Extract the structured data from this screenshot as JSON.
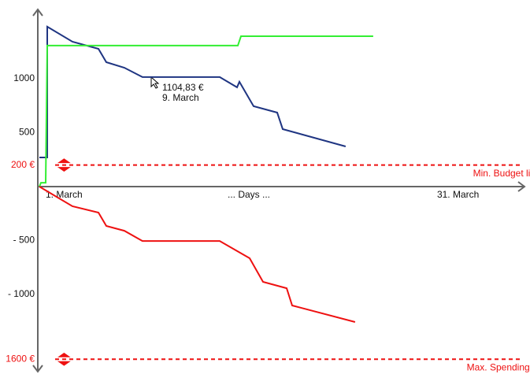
{
  "chart_data": {
    "type": "line",
    "xlabel": "... Days ...",
    "xlim": [
      -1,
      36
    ],
    "xticks": [
      {
        "value": 1,
        "label": "1. March"
      },
      {
        "value": 31,
        "label": "31. March"
      }
    ],
    "ylim": [
      -1700,
      1620
    ],
    "yticks": [
      1000,
      500,
      {
        "value": 200,
        "label": "200 €"
      },
      {
        "value": -500,
        "label": "- 500"
      },
      {
        "value": -1000,
        "label": "- 1000"
      },
      {
        "value": -1600,
        "label": "1600 €"
      }
    ],
    "series": [
      {
        "color": "#1f3582",
        "x": [
          -0.88,
          -0.28,
          -0.28,
          1.64,
          3.62,
          4.22,
          5.59,
          6.97,
          12.85,
          14.17,
          14.35,
          15.43,
          17.23,
          17.65,
          22.44
        ],
        "values": [
          270,
          270,
          1482,
          1343,
          1277,
          1153,
          1102,
          1015,
          1015,
          920,
          971,
          745,
          686,
          533,
          372
        ]
      },
      {
        "color": "#33ee33",
        "x": [
          -0.88,
          -0.76,
          -0.4,
          -0.28,
          14.23,
          14.47,
          24.54
        ],
        "values": [
          0,
          36,
          36,
          1307,
          1307,
          1394,
          1394
        ]
      },
      {
        "color": "#ee1111",
        "x": [
          -0.88,
          1.64,
          3.62,
          4.22,
          5.59,
          6.97,
          12.85,
          15.13,
          16.15,
          17.95,
          18.37,
          23.16
        ],
        "values": [
          0,
          -182,
          -241,
          -365,
          -409,
          -504,
          -504,
          -664,
          -883,
          -942,
          -1102,
          -1255
        ]
      }
    ],
    "limits": [
      {
        "name": "Min. Budget limit",
        "value": 200,
        "color": "#ee1111"
      },
      {
        "name": "Max. Spending limit",
        "value": -1600,
        "color": "#ee1111"
      }
    ],
    "tooltip": {
      "value_text": "1104,83 €",
      "date_text": "9. March"
    }
  }
}
